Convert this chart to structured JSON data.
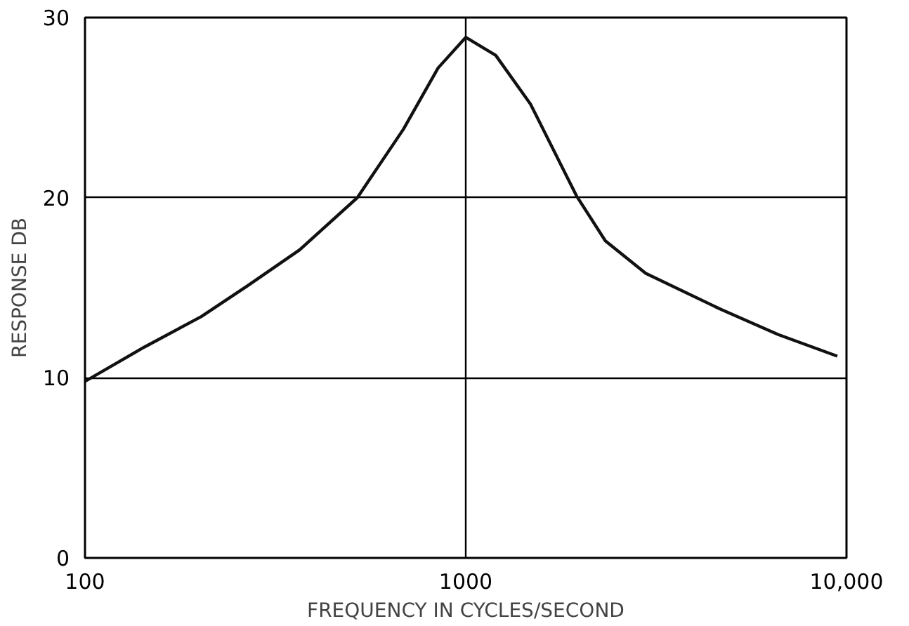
{
  "chart_data": {
    "type": "line",
    "xlabel": "FREQUENCY IN CYCLES/SECOND",
    "ylabel": "RESPONSE DB",
    "log": "x",
    "xlim": [
      100,
      10000
    ],
    "ylim": [
      0,
      30
    ],
    "xticks": [
      100,
      1000,
      {
        "value": 10000,
        "label": "10,000"
      }
    ],
    "yticks": [
      0,
      10,
      20,
      30
    ],
    "grid": true,
    "x": [
      100,
      143,
      202,
      267,
      366,
      519,
      686,
      846,
      1000,
      1199,
      1479,
      1954,
      2327,
      2970,
      4677,
      6620,
      9460
    ],
    "series": [
      {
        "color": "#111111",
        "values": [
          9.8,
          11.7,
          13.4,
          15.1,
          17.1,
          20.0,
          23.8,
          27.2,
          28.9,
          27.9,
          25.2,
          20.1,
          17.6,
          15.8,
          13.8,
          12.4,
          11.2
        ]
      }
    ]
  }
}
